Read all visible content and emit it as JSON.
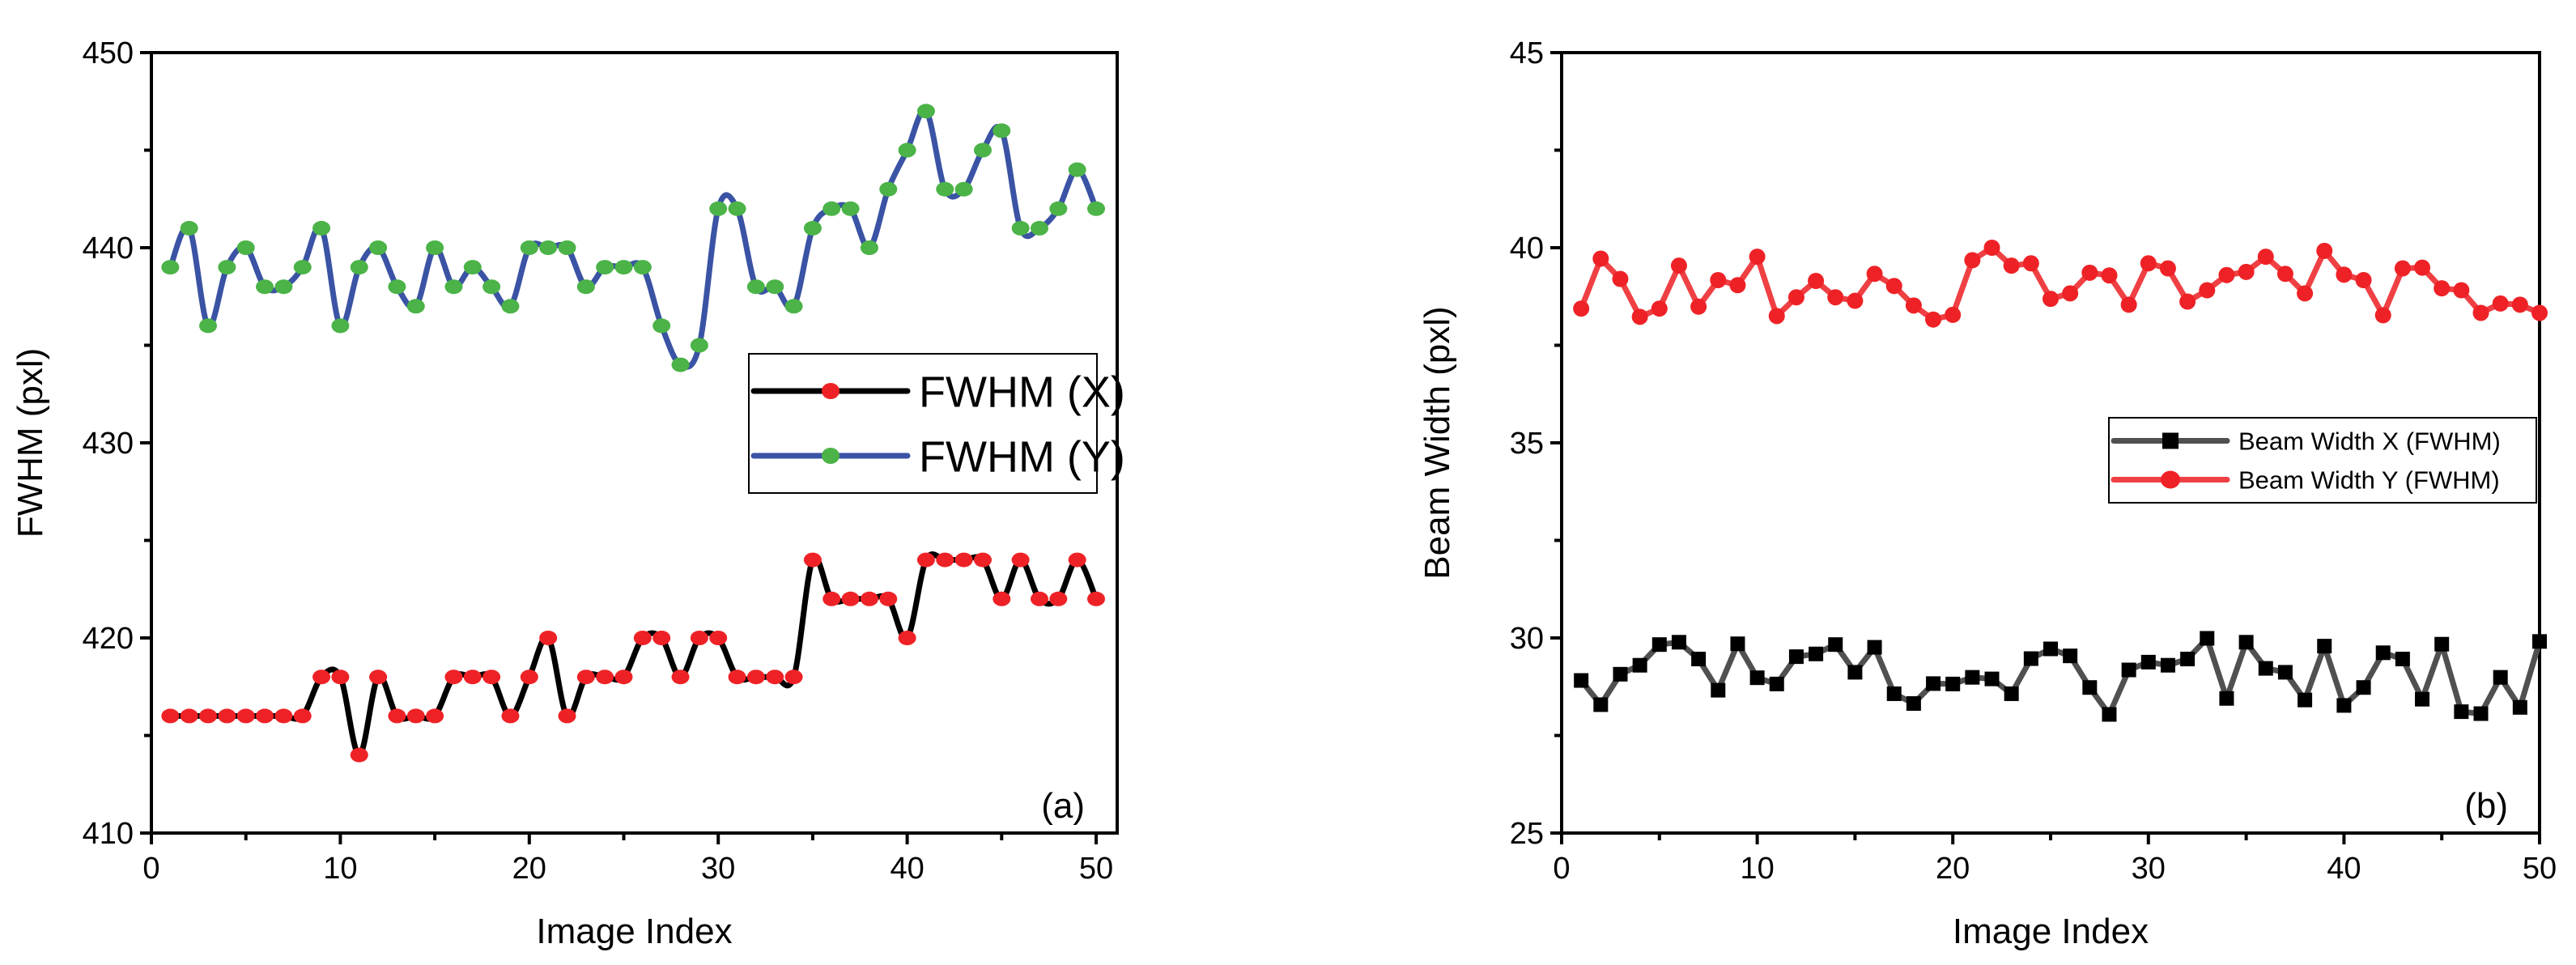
{
  "chart_data": [
    {
      "type": "line",
      "panel_label": "(a)",
      "xlabel": "Image Index",
      "ylabel": "FWHM (pxl)",
      "xlim": [
        0,
        51
      ],
      "ylim": [
        410,
        450
      ],
      "xticks": [
        0,
        10,
        20,
        30,
        40,
        50
      ],
      "yticks": [
        410,
        420,
        430,
        440,
        450
      ],
      "legend_position": "center-right",
      "smooth": true,
      "x": [
        1,
        2,
        3,
        4,
        5,
        6,
        7,
        8,
        9,
        10,
        11,
        12,
        13,
        14,
        15,
        16,
        17,
        18,
        19,
        20,
        21,
        22,
        23,
        24,
        25,
        26,
        27,
        28,
        29,
        30,
        31,
        32,
        33,
        34,
        35,
        36,
        37,
        38,
        39,
        40,
        41,
        42,
        43,
        44,
        45,
        46,
        47,
        48,
        49,
        50
      ],
      "series": [
        {
          "name": "FWHM (X)",
          "line_color": "#000000",
          "marker_color": "#ee2226",
          "marker": "circle",
          "values": [
            416,
            416,
            416,
            416,
            416,
            416,
            416,
            416,
            418,
            418,
            414,
            418,
            416,
            416,
            416,
            418,
            418,
            418,
            416,
            418,
            420,
            416,
            418,
            418,
            418,
            420,
            420,
            418,
            420,
            420,
            418,
            418,
            418,
            418,
            424,
            422,
            422,
            422,
            422,
            420,
            424,
            424,
            424,
            424,
            422,
            424,
            422,
            422,
            424,
            422
          ]
        },
        {
          "name": "FWHM (Y)",
          "line_color": "#3a53a4",
          "marker_color": "#4bb347",
          "marker": "circle",
          "values": [
            439,
            441,
            436,
            439,
            440,
            438,
            438,
            439,
            441,
            436,
            439,
            440,
            438,
            437,
            440,
            438,
            439,
            438,
            437,
            440,
            440,
            440,
            438,
            439,
            439,
            439,
            436,
            434,
            435,
            442,
            442,
            438,
            438,
            437,
            441,
            442,
            442,
            440,
            443,
            445,
            447,
            443,
            443,
            445,
            446,
            441,
            441,
            442,
            444,
            442
          ]
        }
      ]
    },
    {
      "type": "line",
      "panel_label": "(b)",
      "xlabel": "Image Index",
      "ylabel": "Beam Width (pxl)",
      "xlim": [
        0,
        50
      ],
      "ylim": [
        25,
        45
      ],
      "xticks": [
        0,
        10,
        20,
        30,
        40,
        50
      ],
      "yticks": [
        25,
        30,
        35,
        40,
        45
      ],
      "legend_position": "center-right",
      "smooth": false,
      "x": [
        1,
        2,
        3,
        4,
        5,
        6,
        7,
        8,
        9,
        10,
        11,
        12,
        13,
        14,
        15,
        16,
        17,
        18,
        19,
        20,
        21,
        22,
        23,
        24,
        25,
        26,
        27,
        28,
        29,
        30,
        31,
        32,
        33,
        34,
        35,
        36,
        37,
        38,
        39,
        40,
        41,
        42,
        43,
        44,
        45,
        46,
        47,
        48,
        49,
        50
      ],
      "series": [
        {
          "name": "Beam Width X (FWHM)",
          "line_color": "#505050",
          "marker_color": "#000000",
          "marker": "square",
          "values": [
            28.91,
            28.29,
            29.07,
            29.3,
            29.83,
            29.89,
            29.46,
            28.66,
            29.85,
            28.98,
            28.82,
            29.52,
            29.59,
            29.83,
            29.12,
            29.76,
            28.57,
            28.32,
            28.83,
            28.82,
            28.99,
            28.95,
            28.57,
            29.47,
            29.72,
            29.54,
            28.73,
            28.04,
            29.18,
            29.38,
            29.3,
            29.46,
            29.99,
            28.45,
            29.89,
            29.22,
            29.12,
            28.41,
            29.79,
            28.27,
            28.73,
            29.62,
            29.46,
            28.43,
            29.84,
            28.11,
            28.06,
            28.99,
            28.22,
            29.91
          ]
        },
        {
          "name": "Beam Width Y (FWHM)",
          "line_color": "#ef4044",
          "marker_color": "#ee2226",
          "marker": "circle",
          "values": [
            38.44,
            39.72,
            39.2,
            38.23,
            38.44,
            39.54,
            38.49,
            39.17,
            39.04,
            39.77,
            38.25,
            38.73,
            39.15,
            38.73,
            38.64,
            39.33,
            39.02,
            38.52,
            38.16,
            38.28,
            39.68,
            40.0,
            39.54,
            39.6,
            38.69,
            38.83,
            39.36,
            39.29,
            38.54,
            39.6,
            39.47,
            38.62,
            38.91,
            39.3,
            39.38,
            39.77,
            39.33,
            38.83,
            39.92,
            39.31,
            39.17,
            38.27,
            39.47,
            39.49,
            38.96,
            38.91,
            38.33,
            38.57,
            38.54,
            38.33
          ]
        }
      ]
    }
  ]
}
